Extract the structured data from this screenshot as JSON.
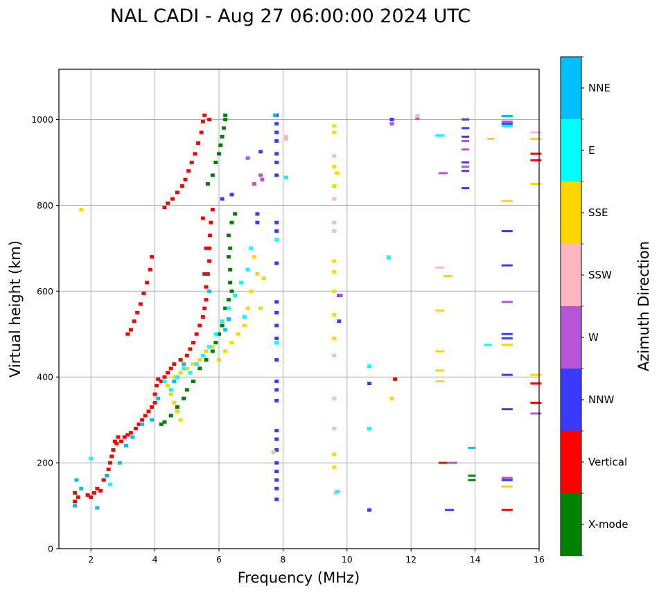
{
  "chart_data": {
    "type": "scatter",
    "subtype": "ionogram-rectangles",
    "title": "NAL CADI - Aug 27 06:00:00 2024 UTC",
    "xlabel": "Frequency (MHz)",
    "ylabel": "Virtual height (km)",
    "xlim": [
      1,
      16
    ],
    "ylim": [
      0,
      1117
    ],
    "xticks": [
      2,
      4,
      6,
      8,
      10,
      12,
      14,
      16
    ],
    "yticks": [
      0,
      200,
      400,
      600,
      800,
      1000
    ],
    "grid": true,
    "colorbar": {
      "label": "Azimuth Direction",
      "categories": [
        "X-mode",
        "Vertical",
        "NNW",
        "W",
        "SSW",
        "SSE",
        "E",
        "NNE"
      ],
      "colors": {
        "X-mode": "#008000",
        "Vertical": "#ff0000",
        "NNW": "#3a3aff",
        "W": "#b655d5",
        "SSW": "#ffb6c1",
        "SSE": "#ffd700",
        "E": "#00ffff",
        "NNE": "#00bfff"
      },
      "placement": "right"
    },
    "series": [
      {
        "name": "Vertical",
        "points": [
          [
            1.5,
            110
          ],
          [
            1.5,
            130
          ],
          [
            1.6,
            120
          ],
          [
            1.9,
            125
          ],
          [
            2.0,
            120
          ],
          [
            2.1,
            130
          ],
          [
            2.2,
            140
          ],
          [
            2.3,
            135
          ],
          [
            2.4,
            160
          ],
          [
            2.5,
            170
          ],
          [
            2.55,
            185
          ],
          [
            2.6,
            200
          ],
          [
            2.65,
            215
          ],
          [
            2.7,
            230
          ],
          [
            2.75,
            250
          ],
          [
            2.8,
            245
          ],
          [
            2.85,
            260
          ],
          [
            2.95,
            250
          ],
          [
            3.05,
            260
          ],
          [
            3.15,
            265
          ],
          [
            3.25,
            270
          ],
          [
            3.4,
            280
          ],
          [
            3.5,
            290
          ],
          [
            3.6,
            300
          ],
          [
            3.7,
            310
          ],
          [
            3.8,
            320
          ],
          [
            3.9,
            330
          ],
          [
            4.0,
            340
          ],
          [
            4.0,
            360
          ],
          [
            4.05,
            380
          ],
          [
            4.1,
            395
          ],
          [
            4.2,
            390
          ],
          [
            4.3,
            400
          ],
          [
            4.4,
            410
          ],
          [
            4.5,
            420
          ],
          [
            4.6,
            430
          ],
          [
            4.8,
            440
          ],
          [
            5.0,
            450
          ],
          [
            5.1,
            465
          ],
          [
            5.2,
            480
          ],
          [
            5.3,
            500
          ],
          [
            5.4,
            520
          ],
          [
            5.5,
            540
          ],
          [
            5.55,
            560
          ],
          [
            5.6,
            580
          ],
          [
            5.6,
            610
          ],
          [
            5.65,
            640
          ],
          [
            5.7,
            670
          ],
          [
            5.7,
            700
          ],
          [
            5.72,
            730
          ],
          [
            5.75,
            760
          ],
          [
            5.8,
            790
          ],
          [
            5.5,
            770
          ],
          [
            5.6,
            700
          ],
          [
            5.55,
            640
          ],
          [
            3.15,
            500
          ],
          [
            3.25,
            510
          ],
          [
            3.35,
            530
          ],
          [
            3.45,
            550
          ],
          [
            3.55,
            570
          ],
          [
            3.65,
            595
          ],
          [
            3.75,
            620
          ],
          [
            3.85,
            650
          ],
          [
            3.9,
            680
          ],
          [
            4.3,
            795
          ],
          [
            4.4,
            805
          ],
          [
            4.55,
            815
          ],
          [
            4.7,
            830
          ],
          [
            4.85,
            845
          ],
          [
            4.95,
            860
          ],
          [
            5.05,
            880
          ],
          [
            5.15,
            900
          ],
          [
            5.25,
            920
          ],
          [
            5.35,
            945
          ],
          [
            5.45,
            970
          ],
          [
            5.5,
            995
          ],
          [
            5.55,
            1010
          ],
          [
            5.7,
            1000
          ],
          [
            11.5,
            395
          ],
          [
            13.0,
            200
          ],
          [
            15.0,
            90
          ],
          [
            15.9,
            905
          ],
          [
            15.9,
            920
          ],
          [
            15.9,
            385
          ],
          [
            15.9,
            340
          ]
        ]
      },
      {
        "name": "X-mode",
        "points": [
          [
            4.2,
            290
          ],
          [
            4.3,
            295
          ],
          [
            4.5,
            310
          ],
          [
            4.7,
            330
          ],
          [
            4.9,
            350
          ],
          [
            5.0,
            370
          ],
          [
            5.2,
            390
          ],
          [
            5.4,
            420
          ],
          [
            5.6,
            440
          ],
          [
            5.8,
            460
          ],
          [
            5.9,
            480
          ],
          [
            6.0,
            500
          ],
          [
            6.1,
            520
          ],
          [
            6.2,
            560
          ],
          [
            6.3,
            580
          ],
          [
            6.4,
            600
          ],
          [
            6.35,
            620
          ],
          [
            6.35,
            650
          ],
          [
            6.3,
            680
          ],
          [
            6.35,
            700
          ],
          [
            6.3,
            730
          ],
          [
            6.4,
            760
          ],
          [
            6.5,
            780
          ],
          [
            5.9,
            900
          ],
          [
            6.0,
            920
          ],
          [
            6.05,
            940
          ],
          [
            6.1,
            960
          ],
          [
            6.15,
            980
          ],
          [
            6.2,
            1000
          ],
          [
            6.2,
            1010
          ],
          [
            5.8,
            870
          ],
          [
            5.65,
            850
          ],
          [
            13.9,
            160
          ],
          [
            13.9,
            170
          ]
        ]
      },
      {
        "name": "NNW",
        "points": [
          [
            7.8,
            1010
          ],
          [
            7.8,
            990
          ],
          [
            7.8,
            970
          ],
          [
            7.8,
            950
          ],
          [
            7.8,
            920
          ],
          [
            7.8,
            900
          ],
          [
            7.8,
            870
          ],
          [
            7.8,
            760
          ],
          [
            7.8,
            740
          ],
          [
            7.8,
            665
          ],
          [
            7.8,
            575
          ],
          [
            7.8,
            550
          ],
          [
            7.8,
            520
          ],
          [
            7.8,
            490
          ],
          [
            7.8,
            440
          ],
          [
            7.8,
            390
          ],
          [
            7.8,
            370
          ],
          [
            7.8,
            345
          ],
          [
            7.8,
            275
          ],
          [
            7.8,
            255
          ],
          [
            7.8,
            230
          ],
          [
            7.8,
            200
          ],
          [
            7.8,
            180
          ],
          [
            7.8,
            160
          ],
          [
            7.8,
            140
          ],
          [
            7.8,
            115
          ],
          [
            9.75,
            590
          ],
          [
            9.75,
            530
          ],
          [
            10.7,
            385
          ],
          [
            10.7,
            90
          ],
          [
            11.4,
            1000
          ],
          [
            13.7,
            1000
          ],
          [
            13.7,
            980
          ],
          [
            13.7,
            960
          ],
          [
            13.7,
            900
          ],
          [
            13.7,
            880
          ],
          [
            13.7,
            840
          ],
          [
            13.2,
            90
          ],
          [
            15.0,
            990
          ],
          [
            15.0,
            740
          ],
          [
            15.0,
            660
          ],
          [
            15.0,
            500
          ],
          [
            15.0,
            490
          ],
          [
            15.0,
            405
          ],
          [
            15.0,
            325
          ],
          [
            15.0,
            160
          ],
          [
            7.2,
            780
          ],
          [
            7.2,
            760
          ],
          [
            7.3,
            925
          ],
          [
            6.4,
            825
          ],
          [
            6.1,
            815
          ]
        ]
      },
      {
        "name": "W",
        "points": [
          [
            6.9,
            910
          ],
          [
            7.3,
            870
          ],
          [
            7.35,
            860
          ],
          [
            11.4,
            990
          ],
          [
            12.2,
            1003
          ],
          [
            13.7,
            950
          ],
          [
            13.7,
            930
          ],
          [
            13.7,
            890
          ],
          [
            13.0,
            875
          ],
          [
            13.3,
            200
          ],
          [
            15.0,
            995
          ],
          [
            15.0,
            575
          ],
          [
            15.0,
            165
          ],
          [
            15.9,
            315
          ],
          [
            7.1,
            850
          ],
          [
            9.8,
            590
          ]
        ]
      },
      {
        "name": "SSW",
        "points": [
          [
            8.1,
            960
          ],
          [
            9.6,
            915
          ],
          [
            9.6,
            815
          ],
          [
            9.6,
            760
          ],
          [
            9.6,
            740
          ],
          [
            9.6,
            450
          ],
          [
            9.6,
            350
          ],
          [
            9.6,
            280
          ],
          [
            11.3,
            680
          ],
          [
            12.9,
            655
          ],
          [
            15.9,
            970
          ],
          [
            12.2,
            1008
          ],
          [
            9.65,
            130
          ],
          [
            7.7,
            225
          ],
          [
            8.1,
            955
          ]
        ]
      },
      {
        "name": "SSE",
        "points": [
          [
            4.4,
            380
          ],
          [
            4.5,
            360
          ],
          [
            4.6,
            340
          ],
          [
            4.7,
            320
          ],
          [
            4.8,
            300
          ],
          [
            4.6,
            400
          ],
          [
            4.8,
            410
          ],
          [
            5.0,
            420
          ],
          [
            5.2,
            430
          ],
          [
            5.4,
            440
          ],
          [
            5.6,
            460
          ],
          [
            5.8,
            470
          ],
          [
            6.0,
            440
          ],
          [
            6.2,
            460
          ],
          [
            6.4,
            480
          ],
          [
            6.6,
            500
          ],
          [
            6.8,
            520
          ],
          [
            6.9,
            560
          ],
          [
            7.0,
            600
          ],
          [
            7.3,
            560
          ],
          [
            7.1,
            680
          ],
          [
            7.2,
            640
          ],
          [
            7.4,
            630
          ],
          [
            9.6,
            985
          ],
          [
            9.6,
            970
          ],
          [
            9.6,
            890
          ],
          [
            9.6,
            845
          ],
          [
            9.6,
            670
          ],
          [
            9.6,
            645
          ],
          [
            9.6,
            600
          ],
          [
            9.6,
            545
          ],
          [
            9.6,
            490
          ],
          [
            9.6,
            220
          ],
          [
            9.6,
            190
          ],
          [
            9.7,
            875
          ],
          [
            12.9,
            555
          ],
          [
            12.9,
            460
          ],
          [
            12.9,
            415
          ],
          [
            12.9,
            390
          ],
          [
            13.15,
            635
          ],
          [
            14.5,
            955
          ],
          [
            15.0,
            810
          ],
          [
            15.0,
            475
          ],
          [
            15.0,
            145
          ],
          [
            15.9,
            955
          ],
          [
            15.9,
            850
          ],
          [
            15.9,
            405
          ],
          [
            11.4,
            350
          ],
          [
            1.7,
            790
          ]
        ]
      },
      {
        "name": "E",
        "points": [
          [
            4.3,
            390
          ],
          [
            4.5,
            370
          ],
          [
            4.7,
            400
          ],
          [
            4.9,
            420
          ],
          [
            5.1,
            410
          ],
          [
            5.3,
            430
          ],
          [
            5.5,
            450
          ],
          [
            5.7,
            470
          ],
          [
            5.9,
            500
          ],
          [
            6.1,
            530
          ],
          [
            6.3,
            560
          ],
          [
            6.5,
            590
          ],
          [
            6.7,
            620
          ],
          [
            6.9,
            650
          ],
          [
            7.0,
            700
          ],
          [
            6.8,
            540
          ],
          [
            7.8,
            720
          ],
          [
            7.8,
            480
          ],
          [
            8.1,
            865
          ],
          [
            10.7,
            425
          ],
          [
            10.7,
            280
          ],
          [
            11.3,
            678
          ],
          [
            12.9,
            963
          ],
          [
            14.4,
            475
          ],
          [
            15.0,
            985
          ],
          [
            9.7,
            133
          ],
          [
            2.6,
            150
          ],
          [
            2.0,
            210
          ]
        ]
      },
      {
        "name": "NNE",
        "points": [
          [
            1.5,
            100
          ],
          [
            1.55,
            160
          ],
          [
            1.7,
            140
          ],
          [
            2.2,
            95
          ],
          [
            2.5,
            170
          ],
          [
            2.9,
            200
          ],
          [
            3.1,
            240
          ],
          [
            3.3,
            260
          ],
          [
            3.6,
            290
          ],
          [
            3.9,
            300
          ],
          [
            4.1,
            350
          ],
          [
            4.6,
            390
          ],
          [
            4.9,
            430
          ],
          [
            5.7,
            600
          ],
          [
            6.3,
            535
          ],
          [
            6.2,
            510
          ],
          [
            15.0,
            1008
          ],
          [
            13.9,
            235
          ],
          [
            7.75,
            1010
          ]
        ]
      }
    ]
  }
}
